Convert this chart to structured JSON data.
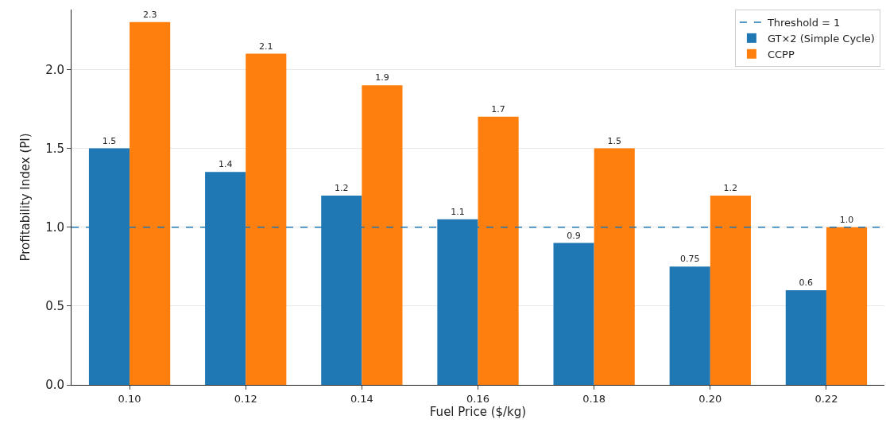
{
  "chart_data": {
    "type": "bar",
    "xlabel": "Fuel Price ($/kg)",
    "ylabel": "Profitability Index (PI)",
    "categories": [
      "0.10",
      "0.12",
      "0.14",
      "0.16",
      "0.18",
      "0.20",
      "0.22"
    ],
    "series": [
      {
        "name": "GT×2 (Simple Cycle)",
        "color": "#1f77b4",
        "values": [
          1.5,
          1.35,
          1.2,
          1.05,
          0.9,
          0.75,
          0.6
        ],
        "value_labels": [
          "1.5",
          "1.4",
          "1.2",
          "1.1",
          "0.9",
          "0.75",
          "0.6"
        ]
      },
      {
        "name": "CCPP",
        "color": "#ff7f0e",
        "values": [
          2.3,
          2.1,
          1.9,
          1.7,
          1.5,
          1.2,
          1.0
        ],
        "value_labels": [
          "2.3",
          "2.1",
          "1.9",
          "1.7",
          "1.5",
          "1.2",
          "1.0"
        ]
      }
    ],
    "ref_lines": [
      {
        "axis": "y",
        "value": 1,
        "label": "Threshold = 1",
        "color": "#1f77b4",
        "line_style": "dashed"
      }
    ],
    "ylim": [
      0,
      2.38
    ],
    "yticks": [
      {
        "value": 0,
        "label": "0.0"
      },
      {
        "value": 0.5,
        "label": "0.5"
      },
      {
        "value": 1,
        "label": "1.0"
      },
      {
        "value": 1.5,
        "label": "1.5"
      },
      {
        "value": 2,
        "label": "2.0"
      }
    ],
    "grid": "y",
    "legend": "top right"
  }
}
